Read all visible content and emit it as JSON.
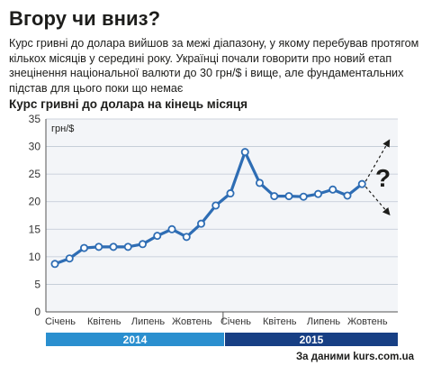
{
  "title": "Вгору чи вниз?",
  "lead": "Курс гривні до долара вийшов за межі діапазону, у якому перебував протягом кількох місяців у середині року. Українці почали говорити про новий етап знецінення національної валюти до 30 грн/$ і вище, але фундаментальних підстав для цього поки що немає",
  "question_mark": "?",
  "source": "За даними kurs.com.ua",
  "colors": {
    "line": "#2e6db4",
    "marker_fill": "#ffffff",
    "plot_bg": "#f3f5f8",
    "grid": "#bfc8d3",
    "year_2014": "#2a8fcf",
    "year_2015": "#173f84"
  },
  "chart_data": {
    "type": "line",
    "title": "Курс гривні до долара на кінець місяця",
    "ylabel": "грн/$",
    "xlabel": "",
    "ylim": [
      0,
      35
    ],
    "yticks": [
      0,
      5,
      10,
      15,
      20,
      25,
      30,
      35
    ],
    "grid": true,
    "x": [
      "2014-01",
      "2014-02",
      "2014-03",
      "2014-04",
      "2014-05",
      "2014-06",
      "2014-07",
      "2014-08",
      "2014-09",
      "2014-10",
      "2014-11",
      "2014-12",
      "2015-01",
      "2015-02",
      "2015-03",
      "2015-04",
      "2015-05",
      "2015-06",
      "2015-07",
      "2015-08",
      "2015-09",
      "2015-10"
    ],
    "month_labels": [
      {
        "x": "2014-01",
        "label": "Січень"
      },
      {
        "x": "2014-04",
        "label": "Квітень"
      },
      {
        "x": "2014-07",
        "label": "Липень"
      },
      {
        "x": "2014-10",
        "label": "Жовтень"
      },
      {
        "x": "2015-01",
        "label": "Січень"
      },
      {
        "x": "2015-04",
        "label": "Квітень"
      },
      {
        "x": "2015-07",
        "label": "Липень"
      },
      {
        "x": "2015-10",
        "label": "Жовтень"
      }
    ],
    "years": [
      {
        "label": "2014",
        "from": "2014-01",
        "to": "2014-12"
      },
      {
        "label": "2015",
        "from": "2015-01",
        "to": "2015-10"
      }
    ],
    "series": [
      {
        "values": [
          8.7,
          9.7,
          11.6,
          11.8,
          11.8,
          11.8,
          12.3,
          13.8,
          15.0,
          13.6,
          16.0,
          19.3,
          21.5,
          29.0,
          23.4,
          21.0,
          21.0,
          20.9,
          21.4,
          22.2,
          21.1,
          23.2
        ]
      }
    ],
    "projection": {
      "from": "2015-10",
      "up_to": 31.0,
      "down_to": 17.8
    }
  }
}
